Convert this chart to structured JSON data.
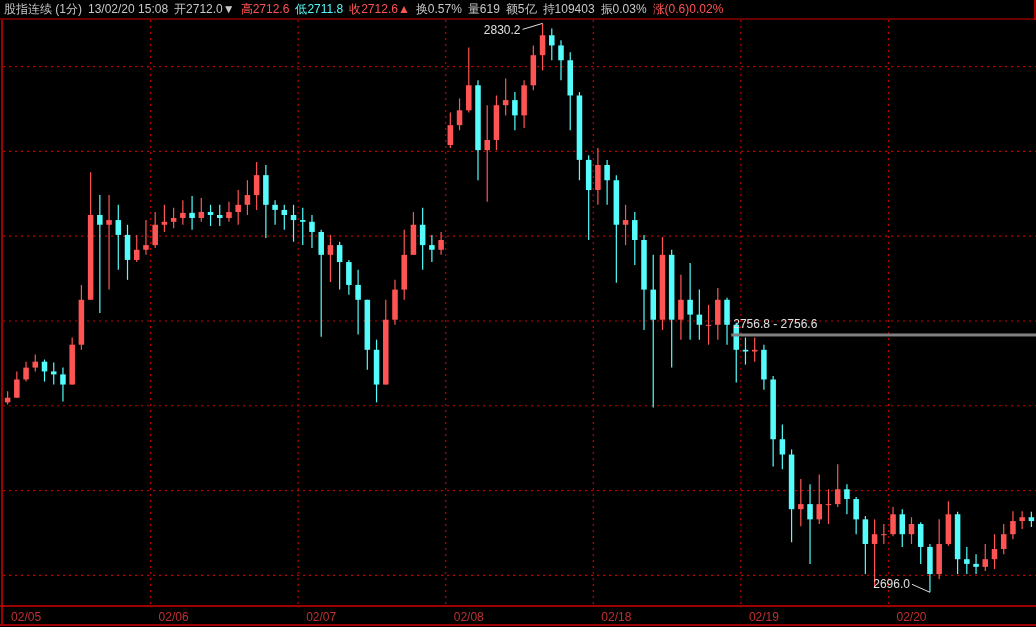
{
  "chart_data": {
    "type": "candlestick",
    "title": "股指连续 (1分)",
    "annotations": [
      "13/02/20 15:08",
      "开2712.0▼",
      "高2712.6",
      "低2711.8",
      "收2712.6▲",
      "换0.57%",
      "量619",
      "额5亿",
      "持109403",
      "振0.03%",
      "涨(0.6)0.02%",
      "2830.2",
      "2696.0"
    ],
    "categories": [
      null,
      null,
      "02/05",
      null,
      null,
      null,
      null,
      null,
      null,
      null,
      null,
      null,
      null,
      null,
      null,
      null,
      null,
      null,
      "02/06",
      null,
      null,
      null,
      null,
      null,
      null,
      null,
      null,
      null,
      null,
      null,
      null,
      null,
      null,
      null,
      "02/07",
      null,
      null,
      null,
      null,
      null,
      null,
      null,
      null,
      null,
      null,
      null,
      null,
      null,
      null,
      null,
      "02/08",
      null,
      null,
      null,
      null,
      null,
      null,
      null,
      null,
      null,
      null,
      null,
      null,
      null,
      null,
      null,
      "02/18",
      null,
      null,
      null,
      null,
      null,
      null,
      null,
      null,
      null,
      null,
      null,
      null,
      null,
      null,
      null,
      "02/19",
      null,
      null,
      null,
      null,
      null,
      null,
      null,
      null,
      null,
      null,
      null,
      null,
      null,
      null,
      null,
      "02/20",
      null,
      null,
      null,
      null,
      null,
      null,
      null,
      null,
      null,
      null,
      null,
      null,
      null
    ],
    "ohlc": [
      [
        2740.8,
        2743.4,
        2740.3,
        2741.9
      ],
      [
        2741.9,
        2748.1,
        2741.9,
        2746.2
      ],
      [
        2746.2,
        2750.4,
        2745.7,
        2749.0
      ],
      [
        2749.0,
        2752.1,
        2748.1,
        2750.4
      ],
      [
        2750.4,
        2750.9,
        2745.7,
        2748.1
      ],
      [
        2748.1,
        2750.2,
        2745.0,
        2747.4
      ],
      [
        2747.4,
        2749.0,
        2741.0,
        2745.0
      ],
      [
        2745.0,
        2756.1,
        2745.0,
        2754.4
      ],
      [
        2754.4,
        2768.5,
        2753.2,
        2765.0
      ],
      [
        2765.0,
        2795.1,
        2765.0,
        2785.0
      ],
      [
        2785.0,
        2789.7,
        2761.9,
        2782.7
      ],
      [
        2782.7,
        2789.7,
        2767.4,
        2783.8
      ],
      [
        2783.8,
        2787.4,
        2772.1,
        2780.3
      ],
      [
        2780.3,
        2782.7,
        2769.7,
        2774.4
      ],
      [
        2774.4,
        2780.3,
        2773.9,
        2776.8
      ],
      [
        2776.8,
        2783.8,
        2775.6,
        2777.9
      ],
      [
        2777.9,
        2785.7,
        2777.2,
        2782.7
      ],
      [
        2782.7,
        2787.4,
        2781.0,
        2783.4
      ],
      [
        2783.4,
        2786.7,
        2781.9,
        2784.3
      ],
      [
        2784.3,
        2788.5,
        2782.7,
        2785.5
      ],
      [
        2785.5,
        2789.5,
        2781.5,
        2784.3
      ],
      [
        2784.3,
        2789.0,
        2783.4,
        2785.7
      ],
      [
        2785.7,
        2787.4,
        2782.4,
        2785.0
      ],
      [
        2785.0,
        2787.4,
        2782.4,
        2784.3
      ],
      [
        2784.3,
        2788.1,
        2783.4,
        2785.7
      ],
      [
        2785.7,
        2790.9,
        2782.7,
        2787.4
      ],
      [
        2787.4,
        2793.2,
        2785.0,
        2789.7
      ],
      [
        2789.7,
        2797.5,
        2786.2,
        2794.4
      ],
      [
        2794.4,
        2796.8,
        2779.6,
        2787.4
      ],
      [
        2787.4,
        2788.5,
        2782.7,
        2786.2
      ],
      [
        2786.2,
        2787.4,
        2781.5,
        2785.0
      ],
      [
        2785.0,
        2787.4,
        2778.7,
        2783.8
      ],
      [
        2783.8,
        2786.7,
        2777.9,
        2783.4
      ],
      [
        2783.4,
        2785.0,
        2777.2,
        2781.0
      ],
      [
        2781.0,
        2781.5,
        2756.3,
        2775.6
      ],
      [
        2775.6,
        2780.3,
        2769.2,
        2777.9
      ],
      [
        2777.9,
        2778.7,
        2767.4,
        2773.9
      ],
      [
        2773.9,
        2774.4,
        2766.2,
        2768.5
      ],
      [
        2768.5,
        2772.1,
        2756.8,
        2765.0
      ],
      [
        2765.0,
        2765.0,
        2748.5,
        2753.2
      ],
      [
        2753.2,
        2755.6,
        2740.8,
        2745.0
      ],
      [
        2745.0,
        2765.0,
        2745.0,
        2760.3
      ],
      [
        2760.3,
        2769.7,
        2759.1,
        2767.4
      ],
      [
        2767.4,
        2781.5,
        2765.0,
        2775.6
      ],
      [
        2775.6,
        2785.7,
        2775.6,
        2782.7
      ],
      [
        2782.7,
        2786.7,
        2772.1,
        2777.9
      ],
      [
        2777.9,
        2780.3,
        2773.9,
        2776.8
      ],
      [
        2776.8,
        2781.0,
        2775.6,
        2779.1
      ],
      [
        2801.5,
        2809.2,
        2800.8,
        2806.2
      ],
      [
        2806.2,
        2812.5,
        2805.0,
        2809.7
      ],
      [
        2809.7,
        2824.5,
        2809.2,
        2815.6
      ],
      [
        2815.6,
        2816.8,
        2793.2,
        2800.3
      ],
      [
        2800.3,
        2810.9,
        2788.1,
        2802.7
      ],
      [
        2802.7,
        2813.2,
        2800.3,
        2810.9
      ],
      [
        2810.9,
        2817.2,
        2808.5,
        2812.1
      ],
      [
        2812.1,
        2814.0,
        2805.0,
        2808.5
      ],
      [
        2808.5,
        2816.8,
        2805.5,
        2815.6
      ],
      [
        2815.6,
        2825.0,
        2814.4,
        2822.7
      ],
      [
        2822.7,
        2830.2,
        2819.1,
        2827.4
      ],
      [
        2827.4,
        2829.0,
        2821.5,
        2825.0
      ],
      [
        2825.0,
        2826.2,
        2816.8,
        2821.5
      ],
      [
        2821.5,
        2823.4,
        2805.0,
        2813.2
      ],
      [
        2813.2,
        2814.0,
        2793.2,
        2798.0
      ],
      [
        2798.0,
        2799.1,
        2779.1,
        2790.9
      ],
      [
        2790.9,
        2800.8,
        2787.4,
        2796.8
      ],
      [
        2796.8,
        2798.0,
        2787.4,
        2793.2
      ],
      [
        2793.2,
        2794.4,
        2769.0,
        2782.7
      ],
      [
        2782.7,
        2787.4,
        2777.9,
        2783.8
      ],
      [
        2783.8,
        2785.7,
        2773.2,
        2779.1
      ],
      [
        2779.1,
        2780.3,
        2757.9,
        2767.4
      ],
      [
        2767.4,
        2775.6,
        2739.6,
        2760.3
      ],
      [
        2760.3,
        2779.8,
        2757.9,
        2775.6
      ],
      [
        2775.6,
        2776.8,
        2749.0,
        2760.3
      ],
      [
        2760.3,
        2770.9,
        2755.6,
        2765.0
      ],
      [
        2765.0,
        2773.7,
        2755.6,
        2761.5
      ],
      [
        2761.5,
        2767.4,
        2755.6,
        2759.1
      ],
      [
        2759.1,
        2763.8,
        2754.4,
        2759.1
      ],
      [
        2759.1,
        2767.8,
        2755.6,
        2765.0
      ],
      [
        2765.0,
        2765.5,
        2754.4,
        2759.1
      ],
      [
        2759.1,
        2759.6,
        2745.5,
        2753.2
      ],
      [
        2753.2,
        2756.1,
        2749.7,
        2752.8
      ],
      [
        2752.8,
        2756.1,
        2750.4,
        2753.2
      ],
      [
        2753.2,
        2754.4,
        2743.8,
        2746.2
      ],
      [
        2746.2,
        2747.0,
        2725.7,
        2732.1
      ],
      [
        2732.1,
        2735.6,
        2725.0,
        2728.5
      ],
      [
        2728.5,
        2729.7,
        2707.8,
        2715.6
      ],
      [
        2715.6,
        2722.7,
        2711.6,
        2716.8
      ],
      [
        2716.8,
        2721.5,
        2702.7,
        2713.2
      ],
      [
        2713.2,
        2723.8,
        2712.1,
        2716.8
      ],
      [
        2716.8,
        2720.3,
        2712.1,
        2716.8
      ],
      [
        2716.8,
        2726.2,
        2716.1,
        2720.3
      ],
      [
        2720.3,
        2721.5,
        2714.4,
        2718.0
      ],
      [
        2718.0,
        2718.5,
        2709.7,
        2713.2
      ],
      [
        2713.2,
        2714.0,
        2700.3,
        2707.4
      ],
      [
        2707.4,
        2713.2,
        2697.2,
        2709.7
      ],
      [
        2709.7,
        2712.1,
        2707.4,
        2709.7
      ],
      [
        2709.7,
        2716.1,
        2709.2,
        2714.4
      ],
      [
        2714.4,
        2715.6,
        2706.7,
        2709.7
      ],
      [
        2709.7,
        2713.7,
        2707.4,
        2712.1
      ],
      [
        2712.1,
        2712.5,
        2702.7,
        2706.7
      ],
      [
        2706.7,
        2707.4,
        2696.0,
        2700.3
      ],
      [
        2700.3,
        2713.2,
        2699.1,
        2707.4
      ],
      [
        2707.4,
        2717.5,
        2707.0,
        2714.4
      ],
      [
        2714.4,
        2715.0,
        2700.3,
        2703.8
      ],
      [
        2703.8,
        2706.7,
        2700.3,
        2702.7
      ],
      [
        2702.7,
        2705.0,
        2700.3,
        2702.0
      ],
      [
        2702.0,
        2707.4,
        2701.0,
        2703.8
      ],
      [
        2703.8,
        2709.7,
        2701.5,
        2706.2
      ],
      [
        2706.2,
        2712.1,
        2705.0,
        2709.7
      ],
      [
        2709.7,
        2715.1,
        2708.5,
        2712.8
      ],
      [
        2712.8,
        2715.1,
        2710.9,
        2713.7
      ],
      [
        2713.7,
        2715.0,
        2711.4,
        2712.8
      ]
    ],
    "ylim": [
      2693,
      2831
    ],
    "yticks": [
      {
        "value": 2700,
        "label": null
      },
      {
        "value": 2720,
        "label": null
      },
      {
        "value": 2740,
        "label": null
      },
      {
        "value": 2760,
        "label": null
      },
      {
        "value": 2780,
        "label": null
      },
      {
        "value": 2800,
        "label": null
      },
      {
        "value": 2820,
        "label": null
      }
    ],
    "grid": true,
    "tick_labels": "x",
    "bands": [
      {
        "axis": "y",
        "from": 2756.6,
        "to": 2756.8,
        "label": "2756.8 - 2756.6",
        "color": "#808080"
      }
    ]
  }
}
